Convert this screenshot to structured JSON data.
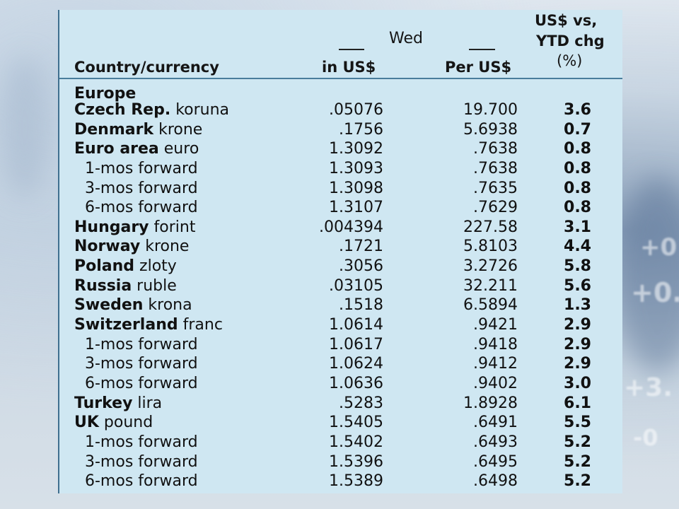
{
  "header": {
    "country_col": "Country/currency",
    "wed": "Wed",
    "in_us": "in US$",
    "per_us": "Per US$",
    "ytd_line1": "US$ vs,",
    "ytd_line2": "YTD chg",
    "ytd_line3": "(%)"
  },
  "section": "Europe",
  "rows": [
    {
      "country": "Czech Rep.",
      "currency": " koruna",
      "in_us": ".05076",
      "per_us": "19.700",
      "ytd": "3.6"
    },
    {
      "country": "Denmark",
      "currency": " krone",
      "in_us": ".1756",
      "per_us": "5.6938",
      "ytd": "0.7"
    },
    {
      "country": "Euro area",
      "currency": " euro",
      "in_us": "1.3092",
      "per_us": ".7638",
      "ytd": "0.8"
    },
    {
      "label": "1-mos forward",
      "in_us": "1.3093",
      "per_us": ".7638",
      "ytd": "0.8"
    },
    {
      "label": "3-mos forward",
      "in_us": "1.3098",
      "per_us": ".7635",
      "ytd": "0.8"
    },
    {
      "label": "6-mos forward",
      "in_us": "1.3107",
      "per_us": ".7629",
      "ytd": "0.8"
    },
    {
      "country": "Hungary",
      "currency": " forint",
      "in_us": ".004394",
      "per_us": "227.58",
      "ytd": "3.1"
    },
    {
      "country": "Norway",
      "currency": " krone",
      "in_us": ".1721",
      "per_us": "5.8103",
      "ytd": "4.4"
    },
    {
      "country": "Poland",
      "currency": " zloty",
      "in_us": ".3056",
      "per_us": "3.2726",
      "ytd": "5.8"
    },
    {
      "country": "Russia",
      "currency": " ruble",
      "in_us": ".03105",
      "per_us": "32.211",
      "ytd": "5.6"
    },
    {
      "country": "Sweden",
      "currency": " krona",
      "in_us": ".1518",
      "per_us": "6.5894",
      "ytd": "1.3"
    },
    {
      "country": "Switzerland",
      "currency": " franc",
      "in_us": "1.0614",
      "per_us": ".9421",
      "ytd": "2.9"
    },
    {
      "label": "1-mos forward",
      "in_us": "1.0617",
      "per_us": ".9418",
      "ytd": "2.9"
    },
    {
      "label": "3-mos forward",
      "in_us": "1.0624",
      "per_us": ".9412",
      "ytd": "2.9"
    },
    {
      "label": "6-mos forward",
      "in_us": "1.0636",
      "per_us": ".9402",
      "ytd": "3.0"
    },
    {
      "country": "Turkey",
      "currency": " lira",
      "in_us": ".5283",
      "per_us": "1.8928",
      "ytd": "6.1"
    },
    {
      "country": "UK",
      "currency": " pound",
      "in_us": "1.5405",
      "per_us": ".6491",
      "ytd": "5.5"
    },
    {
      "label": "1-mos forward",
      "in_us": "1.5402",
      "per_us": ".6493",
      "ytd": "5.2"
    },
    {
      "label": "3-mos forward",
      "in_us": "1.5396",
      "per_us": ".6495",
      "ytd": "5.2"
    },
    {
      "label": "6-mos forward",
      "in_us": "1.5389",
      "per_us": ".6498",
      "ytd": "5.2"
    }
  ]
}
